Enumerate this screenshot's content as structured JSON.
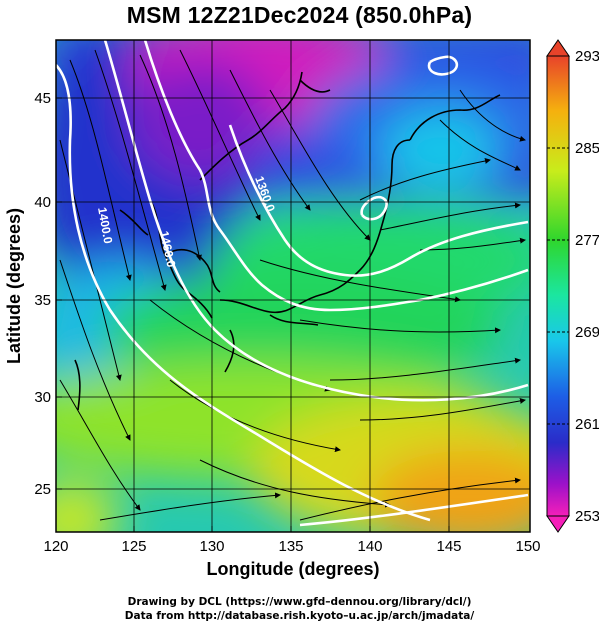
{
  "title": "MSM 12Z21Dec2024 (850.0hPa)",
  "map": {
    "xlabel": "Longitude (degrees)",
    "ylabel": "Latitude  (degrees)",
    "lon_range": [
      120,
      150
    ],
    "lat_range": [
      22.4,
      47.6
    ],
    "lon_ticks": [
      "120",
      "125",
      "130",
      "135",
      "140",
      "145",
      "150"
    ],
    "lat_ticks": [
      "25",
      "30",
      "35",
      "40",
      "45"
    ],
    "contour_labels": [
      "1400.0",
      "1460.0",
      "1360.0"
    ],
    "fields": "temperature (shaded), geopotential height (white contours), wind streamlines"
  },
  "colorbar": {
    "labels": [
      "293",
      "285",
      "277",
      "269",
      "261",
      "253"
    ],
    "min": 253,
    "max": 293
  },
  "footer": {
    "line1": "Drawing by DCL (https://www.gfd–dennou.org/library/dcl/)",
    "line2": "Data from http://database.rish.kyoto–u.ac.jp/arch/jmadata/"
  }
}
